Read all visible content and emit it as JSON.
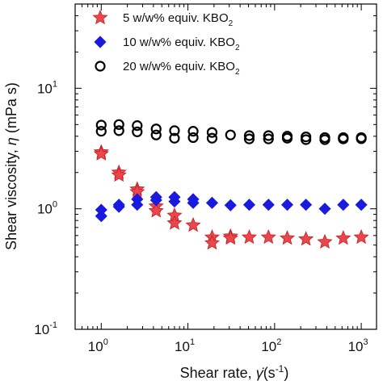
{
  "chart_data": {
    "type": "scatter",
    "xscale": "log",
    "yscale": "log",
    "xlim": [
      0.5,
      1500
    ],
    "ylim": [
      0.1,
      50
    ],
    "grid": false,
    "legend_position": "top-left",
    "xlabel": {
      "main": "Shear rate, ",
      "symbol": "γ̇",
      "paren_open": "(s",
      "exp": "-1",
      "paren_close": ")"
    },
    "ylabel": {
      "main": "Shear viscosity, ",
      "symbol": "η",
      "unit": " (mPa s)"
    },
    "x_ticks": [
      {
        "value": 1,
        "base": "10",
        "exp": "0"
      },
      {
        "value": 10,
        "base": "10",
        "exp": "1"
      },
      {
        "value": 100,
        "base": "10",
        "exp": "2"
      },
      {
        "value": 1000,
        "base": "10",
        "exp": "3"
      }
    ],
    "y_ticks": [
      {
        "value": 0.1,
        "base": "10",
        "exp": "-1"
      },
      {
        "value": 1,
        "base": "10",
        "exp": "0"
      },
      {
        "value": 10,
        "base": "10",
        "exp": "1"
      }
    ],
    "series": [
      {
        "name": "5 w/w% equiv. KBO",
        "name_sub": "2",
        "marker": "star",
        "color": "#e8474b",
        "edge": "#c81e24",
        "points": [
          {
            "x": 1.0,
            "y": 2.95
          },
          {
            "x": 1.0,
            "y": 2.85
          },
          {
            "x": 1.6,
            "y": 2.0
          },
          {
            "x": 1.6,
            "y": 1.9
          },
          {
            "x": 2.6,
            "y": 1.45
          },
          {
            "x": 2.6,
            "y": 1.38
          },
          {
            "x": 4.3,
            "y": 1.05
          },
          {
            "x": 4.3,
            "y": 0.96
          },
          {
            "x": 7.0,
            "y": 0.88
          },
          {
            "x": 7.0,
            "y": 0.76
          },
          {
            "x": 11.5,
            "y": 0.73
          },
          {
            "x": 19,
            "y": 0.58
          },
          {
            "x": 19,
            "y": 0.52
          },
          {
            "x": 31,
            "y": 0.59
          },
          {
            "x": 31,
            "y": 0.57
          },
          {
            "x": 51,
            "y": 0.58
          },
          {
            "x": 85,
            "y": 0.58
          },
          {
            "x": 140,
            "y": 0.57
          },
          {
            "x": 230,
            "y": 0.56
          },
          {
            "x": 380,
            "y": 0.53
          },
          {
            "x": 620,
            "y": 0.57
          },
          {
            "x": 1000,
            "y": 0.58
          }
        ]
      },
      {
        "name": "10 w/w% equiv. KBO",
        "name_sub": "2",
        "marker": "diamond",
        "color": "#1a1adf",
        "edge": "#1a1adf",
        "points": [
          {
            "x": 1.0,
            "y": 0.98
          },
          {
            "x": 1.0,
            "y": 0.87
          },
          {
            "x": 1.6,
            "y": 1.08
          },
          {
            "x": 1.6,
            "y": 1.04
          },
          {
            "x": 2.6,
            "y": 1.2
          },
          {
            "x": 2.6,
            "y": 1.08
          },
          {
            "x": 4.3,
            "y": 1.25
          },
          {
            "x": 4.3,
            "y": 1.18
          },
          {
            "x": 7.0,
            "y": 1.25
          },
          {
            "x": 7.0,
            "y": 1.15
          },
          {
            "x": 11.5,
            "y": 1.2
          },
          {
            "x": 11.5,
            "y": 1.12
          },
          {
            "x": 19,
            "y": 1.12
          },
          {
            "x": 31,
            "y": 1.07
          },
          {
            "x": 51,
            "y": 1.08
          },
          {
            "x": 85,
            "y": 1.08
          },
          {
            "x": 140,
            "y": 1.08
          },
          {
            "x": 230,
            "y": 1.08
          },
          {
            "x": 380,
            "y": 1.0
          },
          {
            "x": 620,
            "y": 1.08
          },
          {
            "x": 1000,
            "y": 1.08
          }
        ]
      },
      {
        "name": "20 w/w% equiv. KBO",
        "name_sub": "2",
        "marker": "open-circle",
        "color": "#000000",
        "edge": "#000000",
        "points": [
          {
            "x": 1.0,
            "y": 4.95
          },
          {
            "x": 1.0,
            "y": 4.4
          },
          {
            "x": 1.6,
            "y": 5.0
          },
          {
            "x": 1.6,
            "y": 4.45
          },
          {
            "x": 2.6,
            "y": 4.9
          },
          {
            "x": 2.6,
            "y": 4.35
          },
          {
            "x": 4.3,
            "y": 4.6
          },
          {
            "x": 4.3,
            "y": 4.1
          },
          {
            "x": 7.0,
            "y": 4.45
          },
          {
            "x": 7.0,
            "y": 3.85
          },
          {
            "x": 11.5,
            "y": 4.4
          },
          {
            "x": 11.5,
            "y": 3.9
          },
          {
            "x": 19,
            "y": 4.3
          },
          {
            "x": 19,
            "y": 3.85
          },
          {
            "x": 31,
            "y": 4.1
          },
          {
            "x": 51,
            "y": 4.05
          },
          {
            "x": 51,
            "y": 3.8
          },
          {
            "x": 85,
            "y": 4.05
          },
          {
            "x": 85,
            "y": 3.8
          },
          {
            "x": 140,
            "y": 4.0
          },
          {
            "x": 140,
            "y": 3.85
          },
          {
            "x": 230,
            "y": 3.95
          },
          {
            "x": 230,
            "y": 3.75
          },
          {
            "x": 380,
            "y": 3.9
          },
          {
            "x": 380,
            "y": 3.75
          },
          {
            "x": 620,
            "y": 3.9
          },
          {
            "x": 620,
            "y": 3.8
          },
          {
            "x": 1000,
            "y": 3.9
          },
          {
            "x": 1000,
            "y": 3.82
          }
        ]
      }
    ]
  }
}
